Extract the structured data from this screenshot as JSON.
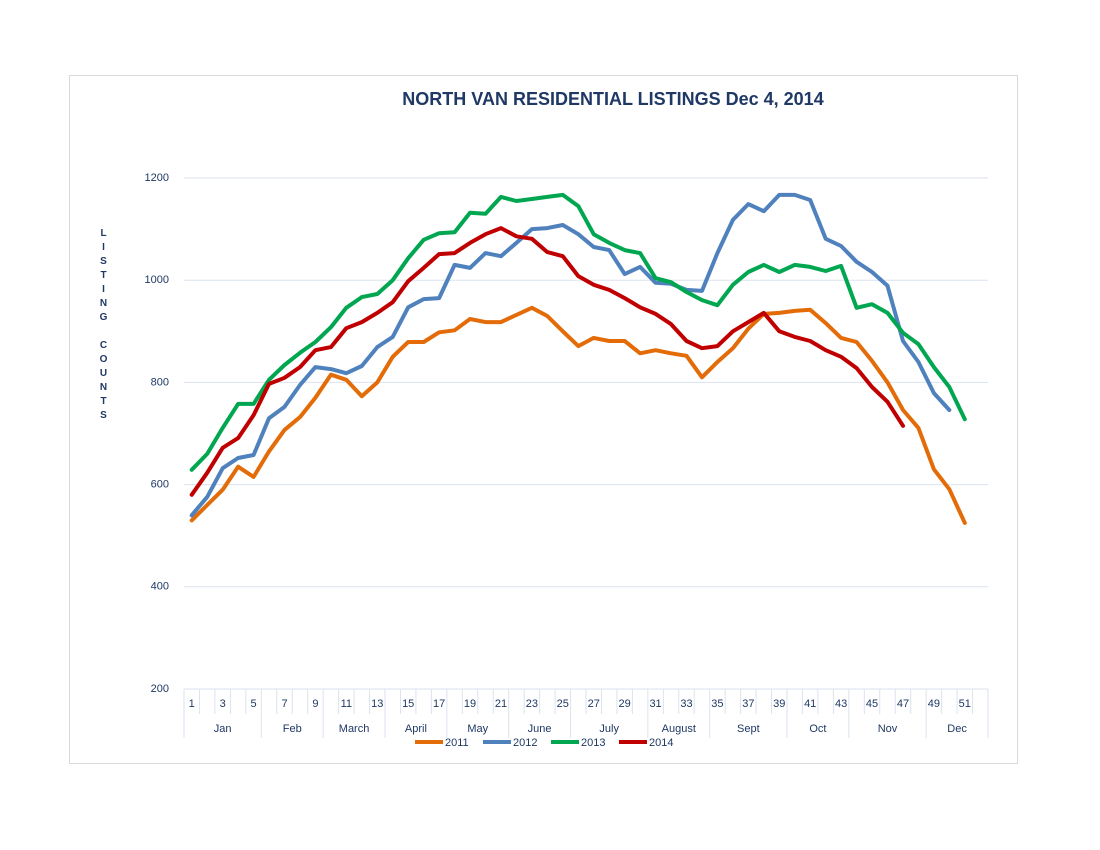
{
  "chart_data": {
    "type": "line",
    "title": "NORTH VAN RESIDENTIAL LISTINGS Dec 4, 2014",
    "y_label": "LISTING COUNTS",
    "categories": [
      1,
      null,
      3,
      null,
      5,
      null,
      7,
      null,
      9,
      null,
      11,
      null,
      13,
      null,
      15,
      null,
      17,
      null,
      19,
      null,
      21,
      null,
      23,
      null,
      25,
      null,
      27,
      null,
      29,
      null,
      31,
      null,
      33,
      null,
      35,
      null,
      37,
      null,
      39,
      null,
      41,
      null,
      43,
      null,
      45,
      null,
      47,
      null,
      49,
      null,
      51,
      null
    ],
    "month_groups": [
      {
        "label": "Jan",
        "weeks": 5
      },
      {
        "label": "Feb",
        "weeks": 4
      },
      {
        "label": "March",
        "weeks": 4
      },
      {
        "label": "April",
        "weeks": 4
      },
      {
        "label": "May",
        "weeks": 4
      },
      {
        "label": "June",
        "weeks": 4
      },
      {
        "label": "July",
        "weeks": 5
      },
      {
        "label": "August",
        "weeks": 4
      },
      {
        "label": "Sept",
        "weeks": 5
      },
      {
        "label": "Oct",
        "weeks": 4
      },
      {
        "label": "Nov",
        "weeks": 5
      },
      {
        "label": "Dec",
        "weeks": 4
      }
    ],
    "ylim": [
      200,
      1200
    ],
    "yticks": [
      200,
      400,
      600,
      800,
      1000,
      1200
    ],
    "grid": true,
    "series": [
      {
        "name": "2011",
        "color": "#e36c09",
        "values": [
          530,
          560,
          590,
          635,
          615,
          665,
          707,
          732,
          770,
          815,
          805,
          773,
          800,
          850,
          879,
          879,
          898,
          902,
          924,
          918,
          918,
          932,
          946,
          930,
          900,
          871,
          887,
          881,
          881,
          857,
          863,
          857,
          852,
          810,
          840,
          867,
          905,
          934,
          936,
          940,
          942,
          916,
          887,
          879,
          842,
          800,
          746,
          711,
          630,
          591,
          525,
          null
        ]
      },
      {
        "name": "2012",
        "color": "#4f81bd",
        "values": [
          540,
          576,
          632,
          652,
          658,
          730,
          752,
          795,
          830,
          826,
          818,
          832,
          869,
          889,
          947,
          963,
          965,
          1030,
          1024,
          1053,
          1047,
          1073,
          1100,
          1102,
          1108,
          1090,
          1065,
          1059,
          1012,
          1026,
          995,
          993,
          981,
          979,
          1053,
          1118,
          1149,
          1135,
          1167,
          1167,
          1157,
          1081,
          1067,
          1036,
          1016,
          989,
          881,
          840,
          779,
          746,
          null,
          null
        ]
      },
      {
        "name": "2013",
        "color": "#00a650",
        "values": [
          629,
          660,
          711,
          758,
          758,
          805,
          834,
          858,
          879,
          908,
          946,
          967,
          973,
          1000,
          1043,
          1079,
          1092,
          1094,
          1132,
          1130,
          1163,
          1155,
          1159,
          1163,
          1167,
          1145,
          1090,
          1073,
          1059,
          1053,
          1004,
          996,
          977,
          961,
          951,
          991,
          1016,
          1030,
          1016,
          1030,
          1026,
          1018,
          1028,
          946,
          953,
          936,
          897,
          875,
          830,
          791,
          728,
          null
        ]
      },
      {
        "name": "2014",
        "color": "#c00000",
        "values": [
          580,
          623,
          672,
          691,
          736,
          797,
          809,
          830,
          863,
          869,
          906,
          918,
          936,
          957,
          998,
          1024,
          1051,
          1053,
          1073,
          1090,
          1102,
          1086,
          1081,
          1055,
          1047,
          1008,
          991,
          981,
          965,
          947,
          934,
          914,
          881,
          867,
          871,
          900,
          918,
          936,
          900,
          889,
          881,
          863,
          850,
          828,
          791,
          762,
          715,
          null,
          null,
          null,
          null,
          null
        ]
      }
    ]
  }
}
